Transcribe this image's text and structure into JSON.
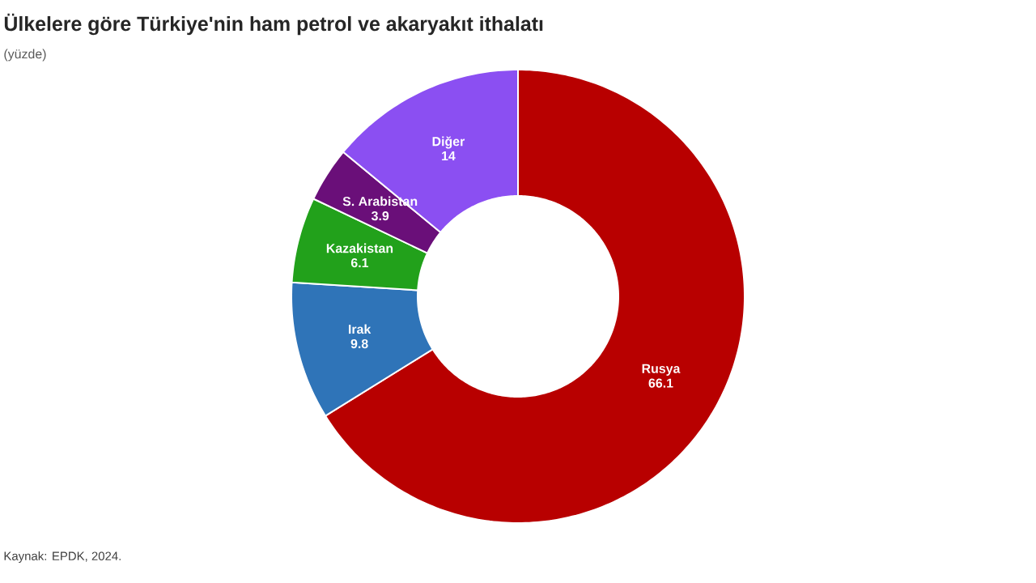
{
  "chart_data": {
    "type": "donut",
    "title": "Ülkelere göre Türkiye'nin ham petrol ve akaryakıt ithalatı",
    "subtitle": "(yüzde)",
    "categories": [
      "Rusya",
      "Irak",
      "Kazakistan",
      "S. Arabistan",
      "Diğer"
    ],
    "values": [
      66.1,
      9.8,
      6.1,
      3.9,
      14
    ],
    "colors": [
      "#b80000",
      "#2f74b8",
      "#22a11b",
      "#6a0f79",
      "#8b4ff2"
    ],
    "data_labels": true,
    "annotations": [
      "Kaynak: EPDK, 2024."
    ]
  }
}
